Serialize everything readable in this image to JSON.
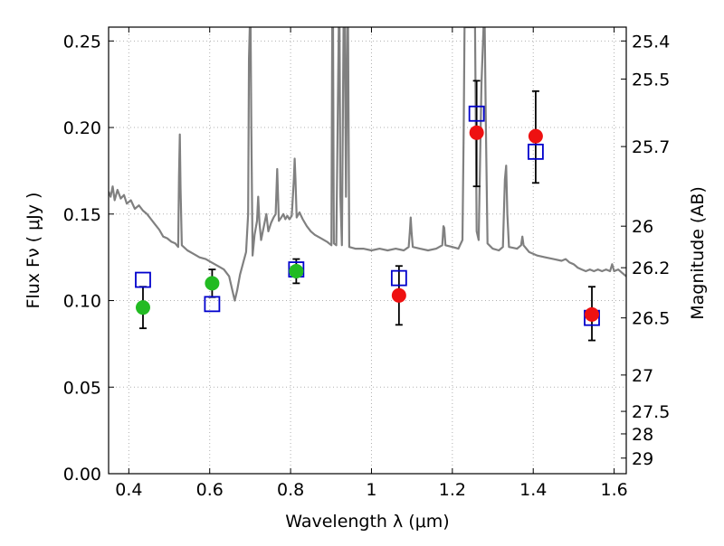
{
  "chart_data": {
    "type": "scatter",
    "xlabel": "Wavelength  λ (μm)",
    "ylabel": "Flux  Fν  ( μJy )",
    "ylabel_right": "Magnitude (AB)",
    "xlim": [
      0.35,
      1.63
    ],
    "ylim": [
      0.0,
      0.258
    ],
    "grid": true,
    "x_ticks": [
      {
        "value": 0.4,
        "label": "0.4"
      },
      {
        "value": 0.6,
        "label": "0.6"
      },
      {
        "value": 0.8,
        "label": "0.8"
      },
      {
        "value": 1.0,
        "label": "1"
      },
      {
        "value": 1.2,
        "label": "1.2"
      },
      {
        "value": 1.4,
        "label": "1.4"
      },
      {
        "value": 1.6,
        "label": "1.6"
      }
    ],
    "y_ticks": [
      {
        "value": 0.0,
        "label": "0.00"
      },
      {
        "value": 0.05,
        "label": "0.05"
      },
      {
        "value": 0.1,
        "label": "0.10"
      },
      {
        "value": 0.15,
        "label": "0.15"
      },
      {
        "value": 0.2,
        "label": "0.20"
      },
      {
        "value": 0.25,
        "label": "0.25"
      }
    ],
    "right_ticks": [
      {
        "flux": 0.25,
        "label": "25.4"
      },
      {
        "flux": 0.228,
        "label": "25.5"
      },
      {
        "flux": 0.189,
        "label": "25.7"
      },
      {
        "flux": 0.143,
        "label": "26"
      },
      {
        "flux": 0.119,
        "label": "26.2"
      },
      {
        "flux": 0.09,
        "label": "26.5"
      },
      {
        "flux": 0.057,
        "label": "27"
      },
      {
        "flux": 0.036,
        "label": "27.5"
      },
      {
        "flux": 0.023,
        "label": "28"
      },
      {
        "flux": 0.009,
        "label": "29"
      }
    ],
    "colors": {
      "spectrum": "#808080",
      "green_points": "#22bb22",
      "red_points": "#ee1111",
      "model_squares": "#0000cc",
      "errorbars": "#000000",
      "grid": "#b0b0b0"
    },
    "series": [
      {
        "marker": "circle",
        "color": "#22bb22",
        "points": [
          {
            "x": 0.435,
            "y": 0.096,
            "yerr_low": 0.084,
            "yerr_high": 0.108
          },
          {
            "x": 0.606,
            "y": 0.11,
            "yerr_low": 0.102,
            "yerr_high": 0.118
          },
          {
            "x": 0.814,
            "y": 0.117,
            "yerr_low": 0.11,
            "yerr_high": 0.124
          }
        ]
      },
      {
        "marker": "circle",
        "color": "#ee1111",
        "points": [
          {
            "x": 1.068,
            "y": 0.103,
            "yerr_low": 0.086,
            "yerr_high": 0.12
          },
          {
            "x": 1.26,
            "y": 0.197,
            "yerr_low": 0.166,
            "yerr_high": 0.227
          },
          {
            "x": 1.406,
            "y": 0.195,
            "yerr_low": 0.168,
            "yerr_high": 0.221
          },
          {
            "x": 1.545,
            "y": 0.092,
            "yerr_low": 0.077,
            "yerr_high": 0.108
          }
        ]
      },
      {
        "marker": "open-square",
        "color": "#0000cc",
        "points": [
          {
            "x": 0.435,
            "y": 0.112
          },
          {
            "x": 0.606,
            "y": 0.098
          },
          {
            "x": 0.814,
            "y": 0.118
          },
          {
            "x": 1.068,
            "y": 0.113
          },
          {
            "x": 1.26,
            "y": 0.208
          },
          {
            "x": 1.406,
            "y": 0.186
          },
          {
            "x": 1.545,
            "y": 0.09
          }
        ]
      },
      {
        "marker": "line",
        "color": "#808080",
        "points": [
          {
            "x": 0.35,
            "y": 0.163
          },
          {
            "x": 0.355,
            "y": 0.16
          },
          {
            "x": 0.36,
            "y": 0.166
          },
          {
            "x": 0.365,
            "y": 0.158
          },
          {
            "x": 0.372,
            "y": 0.164
          },
          {
            "x": 0.38,
            "y": 0.159
          },
          {
            "x": 0.388,
            "y": 0.161
          },
          {
            "x": 0.395,
            "y": 0.156
          },
          {
            "x": 0.405,
            "y": 0.158
          },
          {
            "x": 0.415,
            "y": 0.153
          },
          {
            "x": 0.425,
            "y": 0.155
          },
          {
            "x": 0.435,
            "y": 0.152
          },
          {
            "x": 0.445,
            "y": 0.15
          },
          {
            "x": 0.455,
            "y": 0.147
          },
          {
            "x": 0.465,
            "y": 0.144
          },
          {
            "x": 0.475,
            "y": 0.141
          },
          {
            "x": 0.485,
            "y": 0.137
          },
          {
            "x": 0.495,
            "y": 0.136
          },
          {
            "x": 0.505,
            "y": 0.134
          },
          {
            "x": 0.515,
            "y": 0.133
          },
          {
            "x": 0.522,
            "y": 0.131
          },
          {
            "x": 0.524,
            "y": 0.172
          },
          {
            "x": 0.526,
            "y": 0.196
          },
          {
            "x": 0.528,
            "y": 0.165
          },
          {
            "x": 0.531,
            "y": 0.132
          },
          {
            "x": 0.545,
            "y": 0.129
          },
          {
            "x": 0.56,
            "y": 0.127
          },
          {
            "x": 0.575,
            "y": 0.125
          },
          {
            "x": 0.59,
            "y": 0.124
          },
          {
            "x": 0.605,
            "y": 0.122
          },
          {
            "x": 0.62,
            "y": 0.12
          },
          {
            "x": 0.635,
            "y": 0.118
          },
          {
            "x": 0.648,
            "y": 0.114
          },
          {
            "x": 0.656,
            "y": 0.106
          },
          {
            "x": 0.662,
            "y": 0.1
          },
          {
            "x": 0.668,
            "y": 0.106
          },
          {
            "x": 0.675,
            "y": 0.115
          },
          {
            "x": 0.683,
            "y": 0.122
          },
          {
            "x": 0.69,
            "y": 0.128
          },
          {
            "x": 0.695,
            "y": 0.15
          },
          {
            "x": 0.697,
            "y": 0.24
          },
          {
            "x": 0.699,
            "y": 0.258
          },
          {
            "x": 0.701,
            "y": 0.258
          },
          {
            "x": 0.703,
            "y": 0.2
          },
          {
            "x": 0.706,
            "y": 0.126
          },
          {
            "x": 0.711,
            "y": 0.138
          },
          {
            "x": 0.717,
            "y": 0.146
          },
          {
            "x": 0.72,
            "y": 0.16
          },
          {
            "x": 0.723,
            "y": 0.145
          },
          {
            "x": 0.727,
            "y": 0.135
          },
          {
            "x": 0.733,
            "y": 0.142
          },
          {
            "x": 0.74,
            "y": 0.15
          },
          {
            "x": 0.745,
            "y": 0.14
          },
          {
            "x": 0.752,
            "y": 0.145
          },
          {
            "x": 0.758,
            "y": 0.148
          },
          {
            "x": 0.763,
            "y": 0.15
          },
          {
            "x": 0.767,
            "y": 0.176
          },
          {
            "x": 0.771,
            "y": 0.146
          },
          {
            "x": 0.777,
            "y": 0.148
          },
          {
            "x": 0.782,
            "y": 0.15
          },
          {
            "x": 0.787,
            "y": 0.147
          },
          {
            "x": 0.792,
            "y": 0.149
          },
          {
            "x": 0.797,
            "y": 0.147
          },
          {
            "x": 0.803,
            "y": 0.149
          },
          {
            "x": 0.808,
            "y": 0.17
          },
          {
            "x": 0.81,
            "y": 0.182
          },
          {
            "x": 0.812,
            "y": 0.17
          },
          {
            "x": 0.815,
            "y": 0.148
          },
          {
            "x": 0.822,
            "y": 0.151
          },
          {
            "x": 0.83,
            "y": 0.147
          },
          {
            "x": 0.84,
            "y": 0.143
          },
          {
            "x": 0.85,
            "y": 0.14
          },
          {
            "x": 0.86,
            "y": 0.138
          },
          {
            "x": 0.875,
            "y": 0.136
          },
          {
            "x": 0.89,
            "y": 0.134
          },
          {
            "x": 0.901,
            "y": 0.132
          },
          {
            "x": 0.903,
            "y": 0.258
          },
          {
            "x": 0.905,
            "y": 0.258
          },
          {
            "x": 0.907,
            "y": 0.133
          },
          {
            "x": 0.913,
            "y": 0.132
          },
          {
            "x": 0.919,
            "y": 0.258
          },
          {
            "x": 0.921,
            "y": 0.258
          },
          {
            "x": 0.923,
            "y": 0.16
          },
          {
            "x": 0.927,
            "y": 0.132
          },
          {
            "x": 0.931,
            "y": 0.258
          },
          {
            "x": 0.934,
            "y": 0.258
          },
          {
            "x": 0.937,
            "y": 0.16
          },
          {
            "x": 0.94,
            "y": 0.258
          },
          {
            "x": 0.942,
            "y": 0.258
          },
          {
            "x": 0.945,
            "y": 0.131
          },
          {
            "x": 0.96,
            "y": 0.13
          },
          {
            "x": 0.98,
            "y": 0.13
          },
          {
            "x": 1.0,
            "y": 0.129
          },
          {
            "x": 1.02,
            "y": 0.13
          },
          {
            "x": 1.04,
            "y": 0.129
          },
          {
            "x": 1.06,
            "y": 0.13
          },
          {
            "x": 1.08,
            "y": 0.129
          },
          {
            "x": 1.092,
            "y": 0.131
          },
          {
            "x": 1.095,
            "y": 0.14
          },
          {
            "x": 1.097,
            "y": 0.148
          },
          {
            "x": 1.099,
            "y": 0.14
          },
          {
            "x": 1.102,
            "y": 0.131
          },
          {
            "x": 1.12,
            "y": 0.13
          },
          {
            "x": 1.14,
            "y": 0.129
          },
          {
            "x": 1.16,
            "y": 0.13
          },
          {
            "x": 1.175,
            "y": 0.132
          },
          {
            "x": 1.178,
            "y": 0.143
          },
          {
            "x": 1.18,
            "y": 0.142
          },
          {
            "x": 1.183,
            "y": 0.132
          },
          {
            "x": 1.2,
            "y": 0.131
          },
          {
            "x": 1.215,
            "y": 0.13
          },
          {
            "x": 1.225,
            "y": 0.135
          },
          {
            "x": 1.228,
            "y": 0.2
          },
          {
            "x": 1.23,
            "y": 0.258
          },
          {
            "x": 1.25,
            "y": 0.258
          },
          {
            "x": 1.256,
            "y": 0.258
          },
          {
            "x": 1.258,
            "y": 0.2
          },
          {
            "x": 1.26,
            "y": 0.14
          },
          {
            "x": 1.265,
            "y": 0.135
          },
          {
            "x": 1.272,
            "y": 0.225
          },
          {
            "x": 1.277,
            "y": 0.258
          },
          {
            "x": 1.28,
            "y": 0.258
          },
          {
            "x": 1.283,
            "y": 0.2
          },
          {
            "x": 1.287,
            "y": 0.133
          },
          {
            "x": 1.3,
            "y": 0.13
          },
          {
            "x": 1.315,
            "y": 0.129
          },
          {
            "x": 1.325,
            "y": 0.131
          },
          {
            "x": 1.33,
            "y": 0.17
          },
          {
            "x": 1.333,
            "y": 0.178
          },
          {
            "x": 1.336,
            "y": 0.15
          },
          {
            "x": 1.34,
            "y": 0.131
          },
          {
            "x": 1.36,
            "y": 0.13
          },
          {
            "x": 1.37,
            "y": 0.132
          },
          {
            "x": 1.373,
            "y": 0.137
          },
          {
            "x": 1.376,
            "y": 0.132
          },
          {
            "x": 1.39,
            "y": 0.128
          },
          {
            "x": 1.41,
            "y": 0.126
          },
          {
            "x": 1.43,
            "y": 0.125
          },
          {
            "x": 1.45,
            "y": 0.124
          },
          {
            "x": 1.47,
            "y": 0.123
          },
          {
            "x": 1.48,
            "y": 0.124
          },
          {
            "x": 1.49,
            "y": 0.122
          },
          {
            "x": 1.5,
            "y": 0.121
          },
          {
            "x": 1.51,
            "y": 0.119
          },
          {
            "x": 1.52,
            "y": 0.118
          },
          {
            "x": 1.53,
            "y": 0.117
          },
          {
            "x": 1.54,
            "y": 0.118
          },
          {
            "x": 1.55,
            "y": 0.117
          },
          {
            "x": 1.56,
            "y": 0.118
          },
          {
            "x": 1.57,
            "y": 0.117
          },
          {
            "x": 1.58,
            "y": 0.118
          },
          {
            "x": 1.59,
            "y": 0.117
          },
          {
            "x": 1.595,
            "y": 0.121
          },
          {
            "x": 1.6,
            "y": 0.117
          },
          {
            "x": 1.61,
            "y": 0.118
          },
          {
            "x": 1.62,
            "y": 0.116
          },
          {
            "x": 1.63,
            "y": 0.114
          }
        ]
      }
    ]
  }
}
